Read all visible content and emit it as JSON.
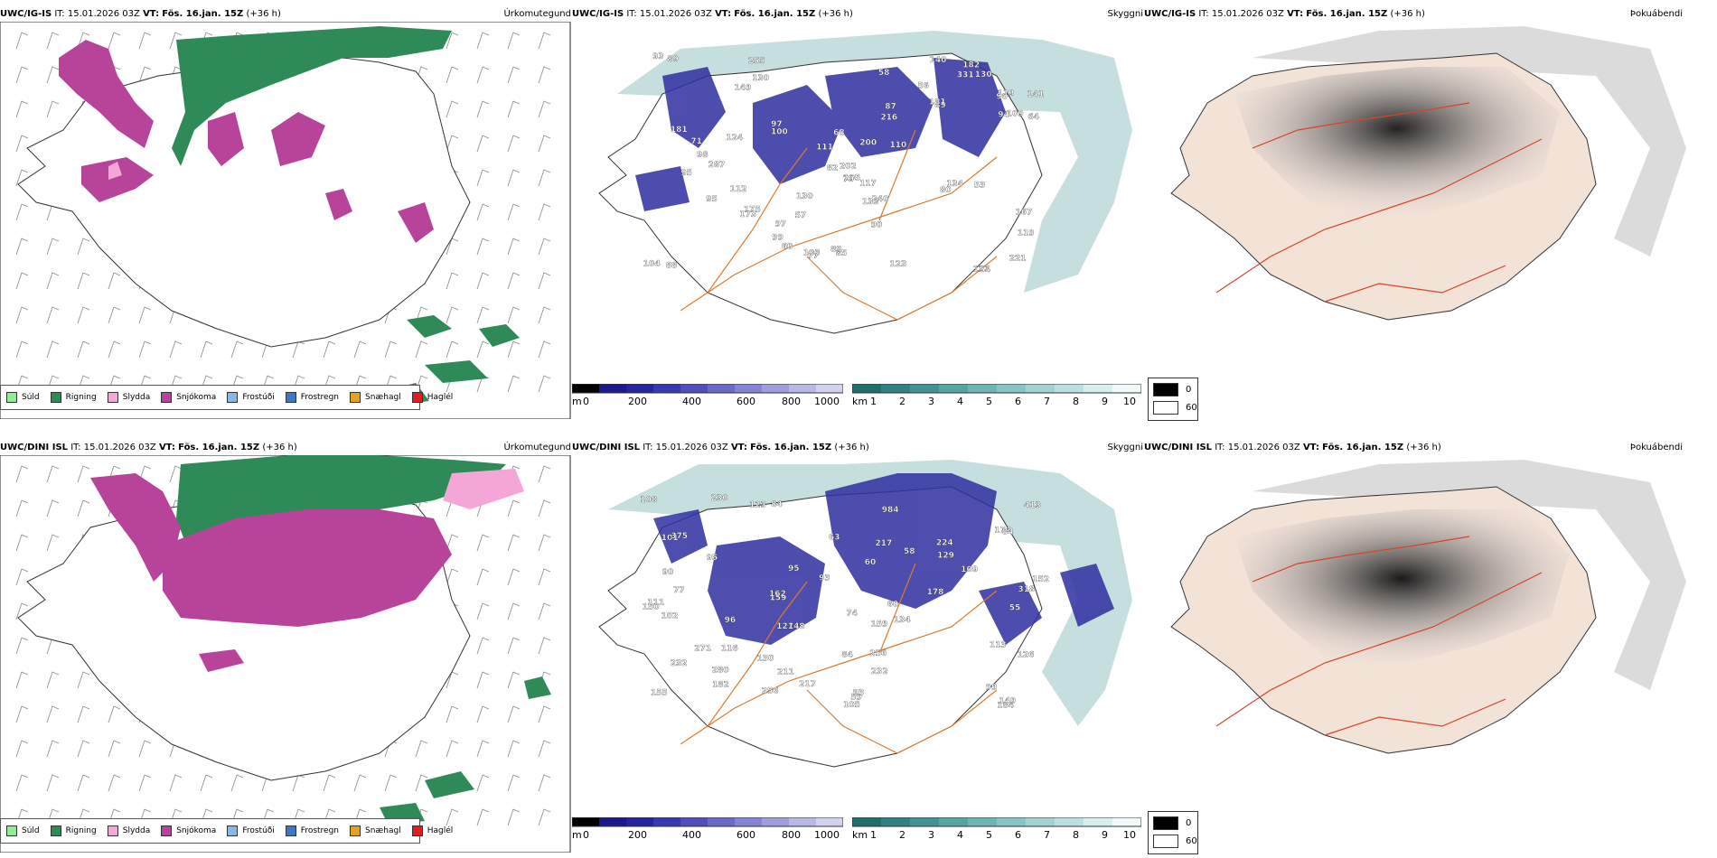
{
  "rows": [
    {
      "model": "UWC/IG-IS",
      "it_label": "IT:",
      "it_value": "15.01.2026 03Z",
      "vt_label": "VT:",
      "vt_value": "Fös. 16.jan. 15Z",
      "lead": "(+36 h)",
      "panels": {
        "precip": {
          "title": "Úrkomutegund"
        },
        "visibility": {
          "title": "Skyggni"
        },
        "fog": {
          "title": "Þokuábendi"
        }
      },
      "visibility_labels": [
        "287",
        "140",
        "200",
        "111",
        "175",
        "182",
        "89",
        "85",
        "105",
        "79",
        "104",
        "90",
        "58",
        "57",
        "121",
        "100",
        "103",
        "112",
        "64",
        "56",
        "54",
        "53",
        "93",
        "87",
        "109",
        "124",
        "80",
        "98",
        "94",
        "95",
        "99",
        "117",
        "60",
        "130",
        "133",
        "95",
        "123",
        "119",
        "149",
        "173",
        "134",
        "130",
        "110",
        "89",
        "68",
        "331",
        "181",
        "181",
        "77",
        "141",
        "90",
        "82",
        "97",
        "89",
        "88",
        "119",
        "130",
        "97",
        "216",
        "240",
        "202",
        "255",
        "221",
        "167",
        "71"
      ]
    },
    {
      "model": "UWC/DINI ISL",
      "it_label": "IT:",
      "it_value": "15.01.2026 03Z",
      "vt_label": "VT:",
      "vt_value": "Fös. 16.jan. 15Z",
      "lead": "(+36 h)",
      "panels": {
        "precip": {
          "title": "Úrkomutegund"
        },
        "visibility": {
          "title": "Skyggni"
        },
        "fog": {
          "title": "Þokuábendi"
        }
      },
      "visibility_labels": [
        "256",
        "155",
        "127",
        "99",
        "182",
        "184",
        "134",
        "129",
        "90",
        "58",
        "55",
        "60",
        "59",
        "60",
        "984",
        "318",
        "149",
        "111",
        "109",
        "174",
        "256",
        "271",
        "152",
        "232",
        "178",
        "217",
        "224",
        "159",
        "130",
        "280",
        "232",
        "148",
        "113",
        "217",
        "123",
        "108",
        "150",
        "93",
        "84",
        "211",
        "159",
        "101",
        "375",
        "126",
        "102",
        "116",
        "74",
        "63",
        "84",
        "77",
        "95",
        "84",
        "93",
        "96",
        "95",
        "413",
        "162",
        "230",
        "105"
      ]
    }
  ],
  "precip_legend": [
    {
      "label": "Súld",
      "color": "#90ee90"
    },
    {
      "label": "Rigning",
      "color": "#2e8b57"
    },
    {
      "label": "Slydda",
      "color": "#f4a6d7"
    },
    {
      "label": "Snjókoma",
      "color": "#b8439a"
    },
    {
      "label": "Frostúði",
      "color": "#87b8e8"
    },
    {
      "label": "Frostregn",
      "color": "#3c78c8"
    },
    {
      "label": "Snæhagl",
      "color": "#e8a020"
    },
    {
      "label": "Haglél",
      "color": "#e02020"
    }
  ],
  "height_bar": {
    "unit": "m",
    "ticks": [
      "0",
      "200",
      "400",
      "600",
      "800",
      "1000"
    ]
  },
  "vis_bar": {
    "unit": "km",
    "ticks": [
      "1",
      "2",
      "3",
      "4",
      "5",
      "6",
      "7",
      "8",
      "9",
      "10"
    ]
  },
  "fog_legend": {
    "values": [
      "0",
      "60"
    ]
  },
  "colors": {
    "rain": "#2e8b57",
    "snow": "#b8439a",
    "sleet": "#f4a6d7",
    "drizzle": "#90ee90",
    "low_vis": "#2f2fa0",
    "vis_mid": "#5aa0a0",
    "roads": "#e07a2a",
    "fog_land": "#f3e2d6"
  }
}
